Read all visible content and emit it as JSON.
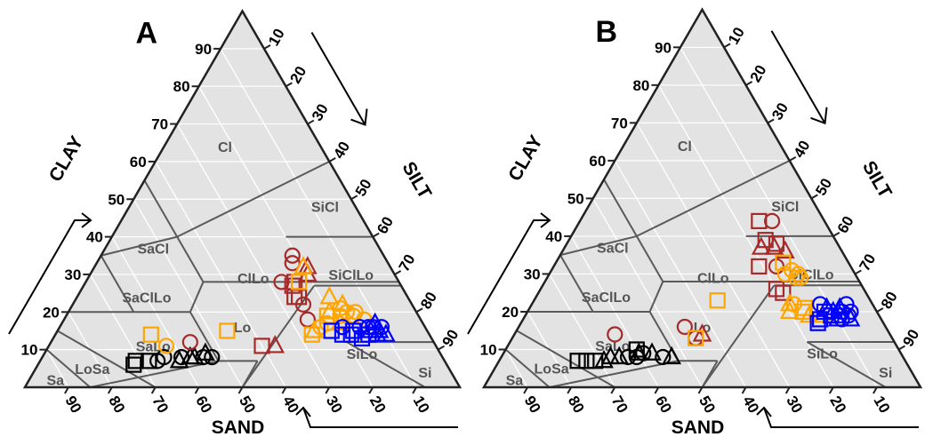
{
  "chart_data": [
    {
      "type": "ternary-scatter",
      "panel": "A",
      "axis_titles": {
        "clay": "CLAY",
        "silt": "SILT",
        "sand": "SAND"
      },
      "ticks": [
        10,
        20,
        30,
        40,
        50,
        60,
        70,
        80,
        90
      ],
      "regions": [
        "Cl",
        "SiCl",
        "SaCl",
        "ClLo",
        "SiClLo",
        "SaClLo",
        "Lo",
        "SiLo",
        "SaLo",
        "LoSa",
        "Sa",
        "Si"
      ],
      "groups": [
        {
          "color": "#000000",
          "points": [
            {
              "sand": 72,
              "clay": 6,
              "m": "square"
            },
            {
              "sand": 71,
              "clay": 7,
              "m": "square"
            },
            {
              "sand": 68,
              "clay": 7,
              "m": "square"
            },
            {
              "sand": 66,
              "clay": 7,
              "m": "circle"
            },
            {
              "sand": 64,
              "clay": 8,
              "m": "circle"
            },
            {
              "sand": 61,
              "clay": 7,
              "m": "triangle"
            },
            {
              "sand": 60,
              "clay": 8,
              "m": "circle"
            },
            {
              "sand": 58,
              "clay": 8,
              "m": "triangle"
            },
            {
              "sand": 57,
              "clay": 8,
              "m": "triangle"
            },
            {
              "sand": 55,
              "clay": 8,
              "m": "circle"
            },
            {
              "sand": 54,
              "clay": 9,
              "m": "triangle"
            },
            {
              "sand": 53,
              "clay": 8,
              "m": "circle"
            }
          ]
        },
        {
          "color": "#a52a2a",
          "points": [
            {
              "sand": 40,
              "clay": 11,
              "m": "square"
            },
            {
              "sand": 37,
              "clay": 11,
              "m": "triangle"
            },
            {
              "sand": 26,
              "clay": 24,
              "m": "square"
            },
            {
              "sand": 25,
              "clay": 27,
              "m": "square"
            },
            {
              "sand": 24,
              "clay": 28,
              "m": "square"
            },
            {
              "sand": 21,
              "clay": 35,
              "m": "circle"
            },
            {
              "sand": 20,
              "clay": 30,
              "m": "triangle"
            },
            {
              "sand": 19,
              "clay": 32,
              "m": "triangle"
            },
            {
              "sand": 22,
              "clay": 33,
              "m": "circle"
            },
            {
              "sand": 25,
              "clay": 22,
              "m": "circle"
            },
            {
              "sand": 27,
              "clay": 28,
              "m": "circle"
            },
            {
              "sand": 56,
              "clay": 12,
              "m": "circle"
            },
            {
              "sand": 25,
              "clay": 24,
              "m": "square"
            },
            {
              "sand": 26,
              "clay": 18,
              "m": "circle"
            }
          ]
        },
        {
          "color": "#ffa500",
          "points": [
            {
              "sand": 46,
              "clay": 15,
              "m": "square"
            },
            {
              "sand": 64,
              "clay": 14,
              "m": "square"
            },
            {
              "sand": 62,
              "clay": 11,
              "m": "circle"
            },
            {
              "sand": 23,
              "clay": 28,
              "m": "square"
            },
            {
              "sand": 20,
              "clay": 32,
              "m": "triangle"
            },
            {
              "sand": 18,
              "clay": 24,
              "m": "triangle"
            },
            {
              "sand": 17,
              "clay": 21,
              "m": "circle"
            },
            {
              "sand": 16,
              "clay": 20,
              "m": "circle"
            },
            {
              "sand": 18,
              "clay": 19,
              "m": "circle"
            },
            {
              "sand": 20,
              "clay": 20,
              "m": "triangle"
            },
            {
              "sand": 15,
              "clay": 19,
              "m": "circle"
            },
            {
              "sand": 14,
              "clay": 20,
              "m": "circle"
            },
            {
              "sand": 21,
              "clay": 19,
              "m": "square"
            },
            {
              "sand": 22,
              "clay": 17,
              "m": "circle"
            },
            {
              "sand": 16,
              "clay": 22,
              "m": "triangle"
            },
            {
              "sand": 27,
              "clay": 14,
              "m": "square"
            },
            {
              "sand": 24,
              "clay": 16,
              "m": "circle"
            },
            {
              "sand": 19,
              "clay": 17,
              "m": "triangle"
            },
            {
              "sand": 13,
              "clay": 18,
              "m": "circle"
            },
            {
              "sand": 26,
              "clay": 15,
              "m": "triangle"
            }
          ]
        },
        {
          "color": "#0000ff",
          "points": [
            {
              "sand": 18,
              "clay": 14,
              "m": "square"
            },
            {
              "sand": 16,
              "clay": 13,
              "m": "square"
            },
            {
              "sand": 14,
              "clay": 14,
              "m": "square"
            },
            {
              "sand": 12,
              "clay": 14,
              "m": "triangle"
            },
            {
              "sand": 13,
              "clay": 16,
              "m": "circle"
            },
            {
              "sand": 15,
              "clay": 16,
              "m": "circle"
            },
            {
              "sand": 11,
              "clay": 17,
              "m": "triangle"
            },
            {
              "sand": 10,
              "clay": 16,
              "m": "circle"
            },
            {
              "sand": 19,
              "clay": 16,
              "m": "circle"
            },
            {
              "sand": 20,
              "clay": 14,
              "m": "square"
            },
            {
              "sand": 13,
              "clay": 15,
              "m": "triangle"
            },
            {
              "sand": 17,
              "clay": 15,
              "m": "square"
            },
            {
              "sand": 12,
              "clay": 16,
              "m": "circle"
            },
            {
              "sand": 22,
              "clay": 15,
              "m": "square"
            },
            {
              "sand": 11,
              "clay": 15,
              "m": "triangle"
            },
            {
              "sand": 10,
              "clay": 14,
              "m": "triangle"
            }
          ]
        }
      ]
    },
    {
      "type": "ternary-scatter",
      "panel": "B",
      "axis_titles": {
        "clay": "CLAY",
        "silt": "SILT",
        "sand": "SAND"
      },
      "ticks": [
        10,
        20,
        30,
        40,
        50,
        60,
        70,
        80,
        90
      ],
      "regions": [
        "Cl",
        "SiCl",
        "SaCl",
        "ClLo",
        "SiClLo",
        "SaClLo",
        "Lo",
        "SiLo",
        "SaLo",
        "LoSa",
        "Sa",
        "Si"
      ],
      "groups": [
        {
          "color": "#000000",
          "points": [
            {
              "sand": 75,
              "clay": 7,
              "m": "square"
            },
            {
              "sand": 73,
              "clay": 7,
              "m": "square"
            },
            {
              "sand": 71,
              "clay": 7,
              "m": "square"
            },
            {
              "sand": 69,
              "clay": 7,
              "m": "triangle"
            },
            {
              "sand": 67,
              "clay": 8,
              "m": "triangle"
            },
            {
              "sand": 65,
              "clay": 8,
              "m": "triangle"
            },
            {
              "sand": 63,
              "clay": 8,
              "m": "circle"
            },
            {
              "sand": 61,
              "clay": 8,
              "m": "circle"
            },
            {
              "sand": 60,
              "clay": 9,
              "m": "triangle"
            },
            {
              "sand": 59,
              "clay": 9,
              "m": "circle"
            },
            {
              "sand": 57,
              "clay": 9,
              "m": "triangle"
            },
            {
              "sand": 55,
              "clay": 8,
              "m": "circle"
            },
            {
              "sand": 53,
              "clay": 8,
              "m": "triangle"
            },
            {
              "sand": 60,
              "clay": 10,
              "m": "square"
            }
          ]
        },
        {
          "color": "#a52a2a",
          "points": [
            {
              "sand": 63,
              "clay": 14,
              "m": "circle"
            },
            {
              "sand": 46,
              "clay": 16,
              "m": "circle"
            },
            {
              "sand": 45,
              "clay": 13,
              "m": "circle"
            },
            {
              "sand": 43,
              "clay": 14,
              "m": "triangle"
            },
            {
              "sand": 15,
              "clay": 44,
              "m": "square"
            },
            {
              "sand": 12,
              "clay": 44,
              "m": "circle"
            },
            {
              "sand": 16,
              "clay": 39,
              "m": "square"
            },
            {
              "sand": 18,
              "clay": 37,
              "m": "triangle"
            },
            {
              "sand": 14,
              "clay": 38,
              "m": "square"
            },
            {
              "sand": 15,
              "clay": 37,
              "m": "triangle"
            },
            {
              "sand": 13,
              "clay": 36,
              "m": "triangle"
            },
            {
              "sand": 17,
              "clay": 32,
              "m": "circle"
            },
            {
              "sand": 20,
              "clay": 26,
              "m": "square"
            },
            {
              "sand": 19,
              "clay": 25,
              "m": "square"
            },
            {
              "sand": 21,
              "clay": 32,
              "m": "square"
            }
          ]
        },
        {
          "color": "#ffa500",
          "points": [
            {
              "sand": 45,
              "clay": 13,
              "m": "square"
            },
            {
              "sand": 35,
              "clay": 23,
              "m": "square"
            },
            {
              "sand": 15,
              "clay": 33,
              "m": "square"
            },
            {
              "sand": 14,
              "clay": 31,
              "m": "circle"
            },
            {
              "sand": 13,
              "clay": 30,
              "m": "circle"
            },
            {
              "sand": 14,
              "clay": 29,
              "m": "circle"
            },
            {
              "sand": 13,
              "clay": 29,
              "m": "circle"
            },
            {
              "sand": 16,
              "clay": 30,
              "m": "circle"
            },
            {
              "sand": 18,
              "clay": 22,
              "m": "circle"
            },
            {
              "sand": 20,
              "clay": 20,
              "m": "triangle"
            },
            {
              "sand": 17,
              "clay": 20,
              "m": "square"
            },
            {
              "sand": 16,
              "clay": 19,
              "m": "triangle"
            },
            {
              "sand": 16,
              "clay": 21,
              "m": "square"
            },
            {
              "sand": 19,
              "clay": 22,
              "m": "triangle"
            },
            {
              "sand": 13,
              "clay": 19,
              "m": "triangle"
            }
          ]
        },
        {
          "color": "#0000ff",
          "points": [
            {
              "sand": 15,
              "clay": 17,
              "m": "square"
            },
            {
              "sand": 12,
              "clay": 20,
              "m": "square"
            },
            {
              "sand": 11,
              "clay": 19,
              "m": "square"
            },
            {
              "sand": 10,
              "clay": 18,
              "m": "triangle"
            },
            {
              "sand": 9,
              "clay": 19,
              "m": "circle"
            },
            {
              "sand": 8,
              "clay": 20,
              "m": "circle"
            },
            {
              "sand": 10,
              "clay": 20,
              "m": "triangle"
            },
            {
              "sand": 9,
              "clay": 18,
              "m": "circle"
            },
            {
              "sand": 7,
              "clay": 19,
              "m": "circle"
            },
            {
              "sand": 12,
              "clay": 22,
              "m": "circle"
            },
            {
              "sand": 8,
              "clay": 21,
              "m": "triangle"
            },
            {
              "sand": 14,
              "clay": 18,
              "m": "square"
            },
            {
              "sand": 6,
              "clay": 20,
              "m": "circle"
            },
            {
              "sand": 7,
              "clay": 18,
              "m": "triangle"
            },
            {
              "sand": 11,
              "clay": 21,
              "m": "triangle"
            },
            {
              "sand": 6,
              "clay": 22,
              "m": "circle"
            }
          ]
        }
      ]
    }
  ]
}
